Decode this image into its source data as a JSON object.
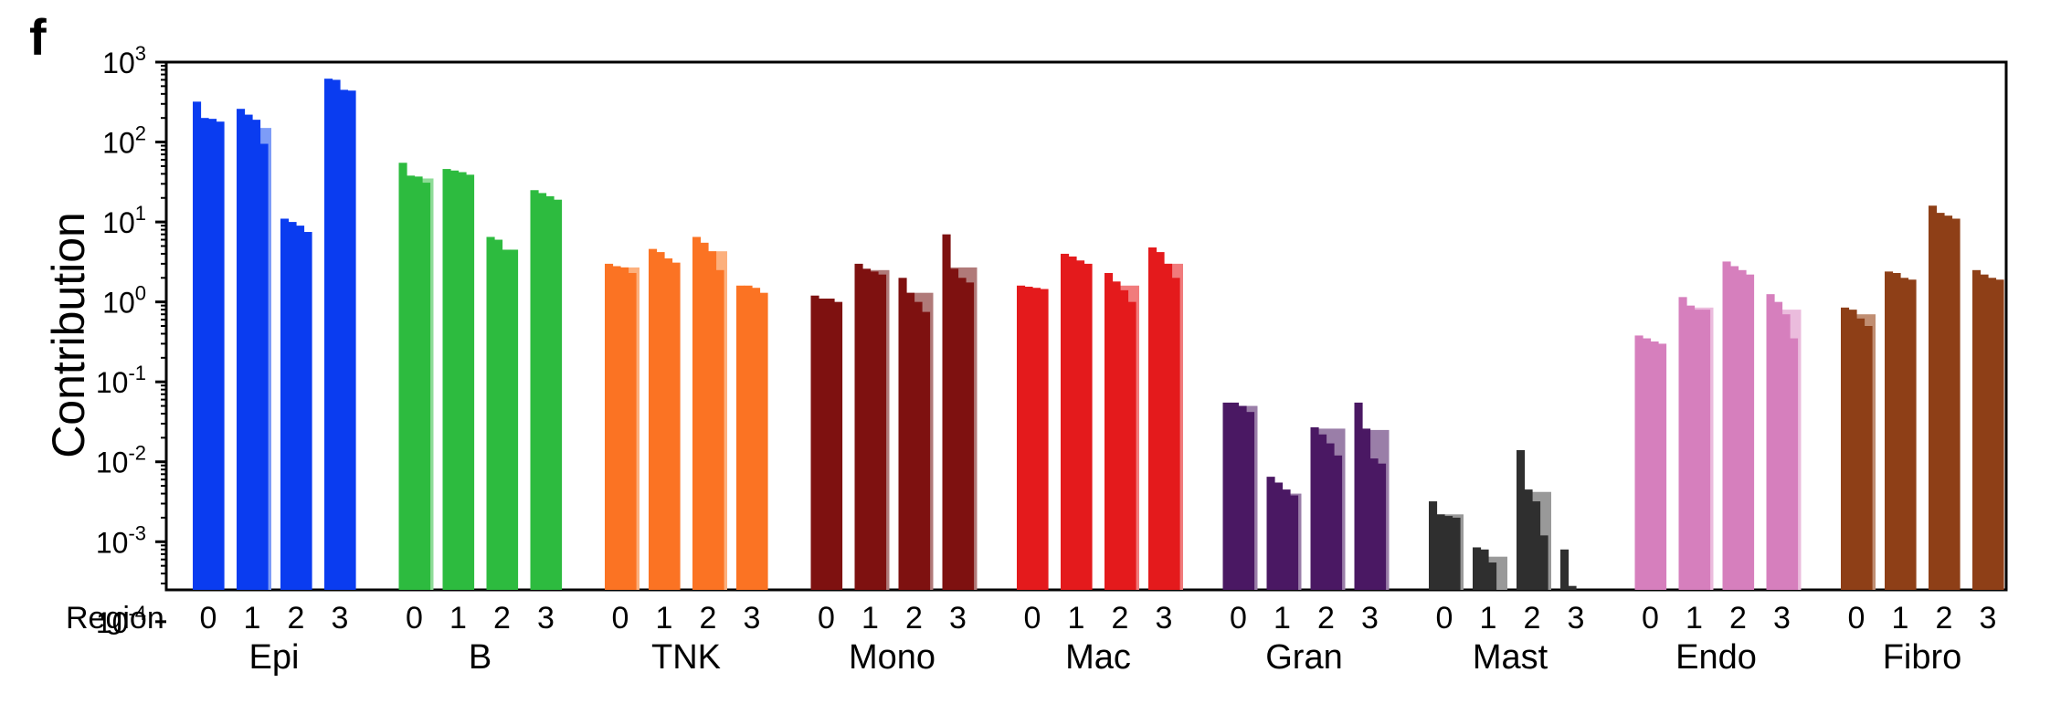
{
  "panel_label": "f",
  "chart_data": {
    "type": "bar",
    "ylabel": "Contribution",
    "yscale": "log",
    "ylim": [
      0.00025,
      1000
    ],
    "yticks": [
      {
        "value": 1000,
        "base": "10",
        "exp": "3"
      },
      {
        "value": 100,
        "base": "10",
        "exp": "2"
      },
      {
        "value": 10,
        "base": "10",
        "exp": "1"
      },
      {
        "value": 1,
        "base": "10",
        "exp": "0"
      },
      {
        "value": 0.1,
        "base": "10",
        "exp": "-1"
      },
      {
        "value": 0.01,
        "base": "10",
        "exp": "-2"
      },
      {
        "value": 0.001,
        "base": "10",
        "exp": "-3"
      },
      {
        "value": 0.0001,
        "base": "10",
        "exp": "-4"
      }
    ],
    "region_axis_label": "Region",
    "regions": [
      "0",
      "1",
      "2",
      "3"
    ],
    "grid": false,
    "groups": [
      {
        "name": "Epi",
        "color": "#0a3cf0",
        "light": "#7d9cf7",
        "regions": [
          [
            320,
            200,
            195,
            180
          ],
          [
            260,
            220,
            190,
            95
          ],
          [
            11,
            10,
            9,
            7.5
          ],
          [
            620,
            600,
            450,
            440
          ]
        ],
        "shade": [
          null,
          150,
          null,
          null
        ]
      },
      {
        "name": "B",
        "color": "#2dbb3f",
        "light": "#8fdc98",
        "regions": [
          [
            55,
            38,
            37,
            31
          ],
          [
            46,
            44,
            42,
            39
          ],
          [
            6.5,
            6,
            4.5,
            4.5
          ],
          [
            25,
            23,
            21,
            19
          ]
        ],
        "shade": [
          35,
          null,
          null,
          null
        ]
      },
      {
        "name": "TNK",
        "color": "#fb7323",
        "light": "#fcb07d",
        "regions": [
          [
            3,
            2.8,
            2.7,
            2.3
          ],
          [
            4.6,
            4.2,
            3.5,
            3.1
          ],
          [
            6.5,
            5.5,
            4.3,
            2.5
          ],
          [
            1.6,
            1.6,
            1.5,
            1.3
          ]
        ],
        "shade": [
          2.7,
          null,
          4.3,
          null
        ]
      },
      {
        "name": "Mono",
        "color": "#7e1110",
        "light": "#b07a79",
        "regions": [
          [
            1.2,
            1.1,
            1.1,
            1.0
          ],
          [
            3.0,
            2.6,
            2.4,
            2.2
          ],
          [
            2.0,
            1.3,
            1.0,
            0.75
          ],
          [
            7.0,
            2.6,
            2.0,
            1.75
          ]
        ],
        "shade": [
          null,
          2.5,
          1.3,
          2.7
        ]
      },
      {
        "name": "Mac",
        "color": "#e41a1c",
        "light": "#f17b7c",
        "regions": [
          [
            1.6,
            1.55,
            1.5,
            1.45
          ],
          [
            4.0,
            3.7,
            3.3,
            3.0
          ],
          [
            2.3,
            1.8,
            1.4,
            1.0
          ],
          [
            4.8,
            4.2,
            3.0,
            2.0
          ]
        ],
        "shade": [
          null,
          null,
          1.6,
          3.0
        ]
      },
      {
        "name": "Gran",
        "color": "#4a1863",
        "light": "#9a7ea8",
        "regions": [
          [
            0.055,
            0.055,
            0.05,
            0.042
          ],
          [
            0.0065,
            0.0055,
            0.0045,
            0.0038
          ],
          [
            0.027,
            0.022,
            0.017,
            0.012
          ],
          [
            0.055,
            0.026,
            0.011,
            0.0095
          ]
        ],
        "shade": [
          0.05,
          0.004,
          0.026,
          0.025
        ]
      },
      {
        "name": "Mast",
        "color": "#2f2f2f",
        "light": "#999999",
        "regions": [
          [
            0.0032,
            0.0022,
            0.0021,
            0.002
          ],
          [
            0.00085,
            0.0008,
            0.00055,
            0.00022
          ],
          [
            0.014,
            0.0045,
            0.0032,
            0.0012
          ],
          [
            0.0008,
            0.00028,
            0.00015,
            8e-05
          ]
        ],
        "shade": [
          0.0022,
          0.00065,
          0.0042,
          0.00022
        ]
      },
      {
        "name": "Endo",
        "color": "#d67fbd",
        "light": "#ebbcdd",
        "regions": [
          [
            0.38,
            0.35,
            0.32,
            0.3
          ],
          [
            1.15,
            0.9,
            0.8,
            0.8
          ],
          [
            3.2,
            2.8,
            2.5,
            2.2
          ],
          [
            1.25,
            1.0,
            0.7,
            0.35
          ]
        ],
        "shade": [
          null,
          0.85,
          null,
          0.8
        ]
      },
      {
        "name": "Fibro",
        "color": "#8e3f17",
        "light": "#c08e72",
        "regions": [
          [
            0.85,
            0.8,
            0.62,
            0.5
          ],
          [
            2.4,
            2.3,
            2.0,
            1.9
          ],
          [
            16,
            13,
            12,
            11
          ],
          [
            2.5,
            2.2,
            2.0,
            1.9
          ]
        ],
        "shade": [
          0.7,
          null,
          null,
          null
        ]
      }
    ]
  }
}
